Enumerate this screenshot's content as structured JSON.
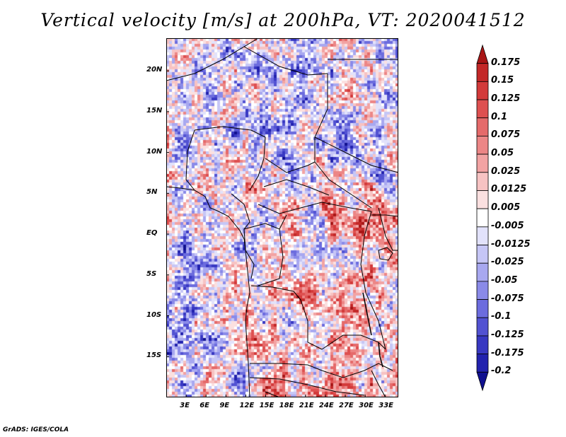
{
  "title": "Vertical velocity [m/s] at 200hPa, VT: 2020041512",
  "footer": "GrADS: IGES/COLA",
  "chart_data": {
    "type": "heatmap",
    "title": "Vertical velocity [m/s] at 200hPa, VT: 2020041512",
    "variable": "Vertical velocity",
    "units": "m/s",
    "level": "200hPa",
    "valid_time": "2020041512",
    "lon_range": [
      0,
      35
    ],
    "lat_range": [
      -20,
      24
    ],
    "x_ticks": [
      "3E",
      "6E",
      "9E",
      "12E",
      "15E",
      "18E",
      "21E",
      "24E",
      "27E",
      "30E",
      "33E"
    ],
    "x_tick_values": [
      3,
      6,
      9,
      12,
      15,
      18,
      21,
      24,
      27,
      30,
      33
    ],
    "y_ticks": [
      "20N",
      "15N",
      "10N",
      "5N",
      "EQ",
      "5S",
      "10S",
      "15S"
    ],
    "y_tick_values": [
      20,
      15,
      10,
      5,
      0,
      -5,
      -10,
      -15
    ],
    "colorbar": {
      "levels": [
        "0.175",
        "0.15",
        "0.125",
        "0.1",
        "0.075",
        "0.05",
        "0.025",
        "0.0125",
        "0.005",
        "-0.005",
        "-0.0125",
        "-0.025",
        "-0.05",
        "-0.075",
        "-0.1",
        "-0.125",
        "-0.175",
        "-0.2"
      ],
      "colors": [
        "#a81616",
        "#c32828",
        "#d33a3a",
        "#de5050",
        "#e56a6a",
        "#ec8686",
        "#f2a3a3",
        "#f7c3c3",
        "#fbe0e0",
        "#ffffff",
        "#e2e2fb",
        "#c6c6f6",
        "#a8a8f0",
        "#8a8ae8",
        "#6c6cde",
        "#5252d2",
        "#3838c2",
        "#2222ae",
        "#10108f"
      ],
      "extend": "both"
    }
  }
}
